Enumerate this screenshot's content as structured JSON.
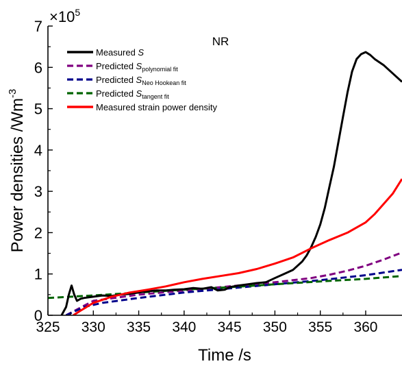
{
  "chart_data": {
    "type": "line",
    "annotation": "NR",
    "annotation_color": "#ff8000",
    "xlabel": "Time /s",
    "ylabel": "Power densities /Wm",
    "ylabel_superscript": "-3",
    "scale_label": "×10",
    "scale_exponent": "5",
    "xlim": [
      325,
      364
    ],
    "ylim": [
      0,
      7
    ],
    "xticks": [
      325,
      330,
      335,
      340,
      345,
      350,
      355,
      360
    ],
    "yticks": [
      0,
      1,
      2,
      3,
      4,
      5,
      6,
      7
    ],
    "legend_position": "top-left",
    "series": [
      {
        "name": "Measured S",
        "name_main": "Measured ",
        "name_sym": "S",
        "name_sub": "",
        "color": "#000000",
        "dash": false,
        "x": [
          326.5,
          327.0,
          327.3,
          327.6,
          327.9,
          328.2,
          328.6,
          329.0,
          330,
          331,
          332,
          333,
          334,
          335,
          336,
          337,
          338,
          339,
          340,
          341,
          342,
          343,
          343.7,
          344.5,
          345,
          346,
          347,
          348,
          349,
          350,
          351,
          352,
          353,
          353.5,
          354,
          354.5,
          355,
          355.5,
          356,
          356.5,
          357,
          357.5,
          358,
          358.5,
          359,
          359.5,
          360,
          360.5,
          361,
          362,
          363,
          364
        ],
        "y": [
          0.0,
          0.2,
          0.5,
          0.72,
          0.5,
          0.35,
          0.4,
          0.42,
          0.45,
          0.48,
          0.47,
          0.5,
          0.52,
          0.55,
          0.58,
          0.6,
          0.6,
          0.62,
          0.63,
          0.66,
          0.64,
          0.68,
          0.6,
          0.62,
          0.68,
          0.72,
          0.75,
          0.78,
          0.8,
          0.9,
          1.0,
          1.1,
          1.3,
          1.45,
          1.65,
          1.9,
          2.2,
          2.6,
          3.1,
          3.6,
          4.2,
          4.8,
          5.4,
          5.9,
          6.2,
          6.32,
          6.37,
          6.3,
          6.2,
          6.05,
          5.85,
          5.65
        ]
      },
      {
        "name": "Predicted S polynomial fit",
        "name_main": "Predicted ",
        "name_sym": "S",
        "name_sub": "polynomial fit",
        "color": "#800080",
        "dash": true,
        "x": [
          327,
          330,
          335,
          340,
          345,
          350,
          352,
          354,
          356,
          358,
          360,
          362,
          364
        ],
        "y": [
          0.0,
          0.35,
          0.5,
          0.6,
          0.7,
          0.8,
          0.85,
          0.9,
          0.98,
          1.08,
          1.2,
          1.35,
          1.52
        ]
      },
      {
        "name": "Predicted S Neo Hookean fit",
        "name_main": "Predicted ",
        "name_sym": "S",
        "name_sub": "Neo Hookean fit",
        "color": "#00008b",
        "dash": true,
        "x": [
          327,
          329,
          331,
          335,
          340,
          345,
          350,
          355,
          360,
          364
        ],
        "y": [
          0.0,
          0.2,
          0.3,
          0.42,
          0.55,
          0.65,
          0.75,
          0.85,
          0.97,
          1.1
        ]
      },
      {
        "name": "Predicted S tangent fit",
        "name_main": "Predicted ",
        "name_sym": "S",
        "name_sub": "tangent fit",
        "color": "#006400",
        "dash": true,
        "x": [
          325,
          330,
          335,
          340,
          345,
          350,
          355,
          360,
          364
        ],
        "y": [
          0.42,
          0.48,
          0.55,
          0.62,
          0.68,
          0.75,
          0.82,
          0.88,
          0.95
        ]
      },
      {
        "name": "Measured strain power density",
        "name_main": "Measured strain power density",
        "name_sym": "",
        "name_sub": "",
        "color": "#ff0000",
        "dash": false,
        "x": [
          327.8,
          328.5,
          330,
          332,
          334,
          336,
          338,
          340,
          342,
          344,
          346,
          348,
          350,
          352,
          354,
          356,
          358,
          360,
          361,
          362,
          363,
          364
        ],
        "y": [
          0.0,
          0.1,
          0.3,
          0.45,
          0.55,
          0.62,
          0.7,
          0.8,
          0.88,
          0.95,
          1.02,
          1.12,
          1.25,
          1.4,
          1.62,
          1.82,
          2.0,
          2.25,
          2.45,
          2.7,
          2.95,
          3.3
        ]
      }
    ]
  }
}
